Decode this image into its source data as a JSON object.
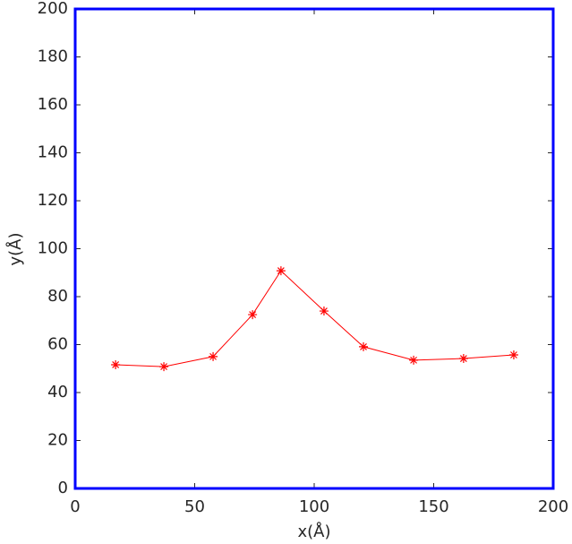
{
  "chart_data": {
    "type": "line",
    "xlabel": "x(Å)",
    "ylabel": "y(Å)",
    "x": [
      16.9,
      37.1,
      57.7,
      74.2,
      86.1,
      104.1,
      120.6,
      141.6,
      162.5,
      183.5
    ],
    "series": [
      {
        "color": "#ff0000",
        "marker": "asterisk",
        "values": [
          51.6,
          50.8,
          55.0,
          72.5,
          90.8,
          74.0,
          59.1,
          53.5,
          54.2,
          55.7
        ]
      }
    ],
    "xlim": [
      0,
      200
    ],
    "xticks": [
      0,
      50,
      100,
      150,
      200
    ],
    "ylim": [
      0,
      200
    ],
    "yticks": [
      0,
      20,
      40,
      60,
      80,
      100,
      120,
      140,
      160,
      180,
      200
    ],
    "grid": false,
    "axis_color": "#0000ff"
  }
}
